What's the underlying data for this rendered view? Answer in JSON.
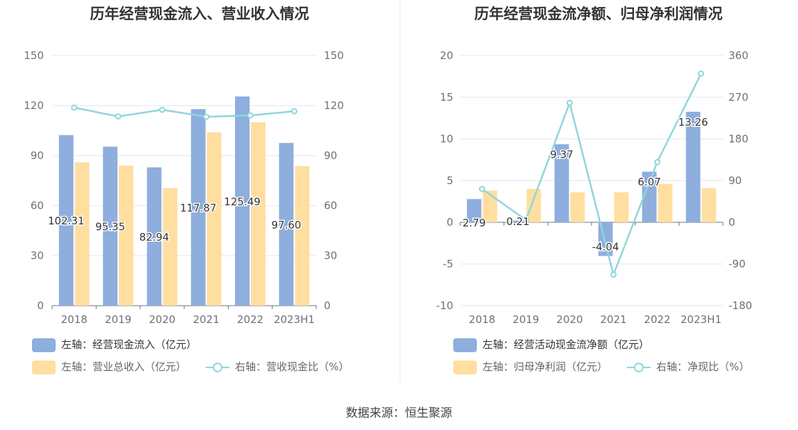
{
  "source": "数据来源：恒生聚源",
  "chart_data": [
    {
      "type": "bar",
      "title": "历年经营现金流入、营业收入情况",
      "categories": [
        "2018",
        "2019",
        "2020",
        "2021",
        "2022",
        "2023H1"
      ],
      "left_axis": {
        "ticks": [
          "0",
          "30",
          "60",
          "90",
          "120",
          "150"
        ],
        "ylim": [
          0,
          150
        ]
      },
      "right_axis": {
        "ticks": [
          "0",
          "30",
          "60",
          "90",
          "120",
          "150"
        ],
        "ylim": [
          0,
          150
        ]
      },
      "series": [
        {
          "name": "左轴：经营现金流入（亿元）",
          "axis": "left",
          "kind": "bar",
          "color": "#8eaedd",
          "values": [
            102.31,
            95.35,
            82.94,
            117.87,
            125.49,
            97.6
          ],
          "labels": [
            "102.31",
            "95.35",
            "82.94",
            "117.87",
            "125.49",
            "97.60"
          ]
        },
        {
          "name": "左轴：营业总收入（亿元）",
          "axis": "left",
          "kind": "bar",
          "color": "#ffdea0",
          "values": [
            86.0,
            84.0,
            70.5,
            104.0,
            110.0,
            83.7
          ]
        },
        {
          "name": "右轴：营收现金比（%）",
          "axis": "right",
          "kind": "line",
          "color": "#8ed6da",
          "values": [
            118.8,
            113.5,
            117.5,
            113.3,
            114.1,
            116.6
          ]
        }
      ],
      "legend_position": "bottom-left"
    },
    {
      "type": "bar",
      "title": "历年经营现金流净额、归母净利润情况",
      "categories": [
        "2018",
        "2019",
        "2020",
        "2021",
        "2022",
        "2023H1"
      ],
      "left_axis": {
        "ticks": [
          "-10",
          "-5",
          "0",
          "5",
          "10",
          "15",
          "20"
        ],
        "ylim": [
          -10,
          20
        ]
      },
      "right_axis": {
        "ticks": [
          "-180",
          "-90",
          "0",
          "90",
          "180",
          "270",
          "360"
        ],
        "ylim": [
          -180,
          360
        ]
      },
      "series": [
        {
          "name": "左轴：经营活动现金流净额（亿元）",
          "axis": "left",
          "kind": "bar",
          "color": "#8eaedd",
          "values": [
            2.79,
            0.21,
            9.37,
            -4.04,
            6.07,
            13.26
          ],
          "labels": [
            "2.79",
            "0.21",
            "9.37",
            "-4.04",
            "6.07",
            "13.26"
          ]
        },
        {
          "name": "左轴：归母净利润（亿元）",
          "axis": "left",
          "kind": "bar",
          "color": "#ffdea0",
          "values": [
            3.8,
            4.0,
            3.6,
            3.6,
            4.6,
            4.1
          ]
        },
        {
          "name": "右轴：净现比（%）",
          "axis": "right",
          "kind": "line",
          "color": "#8ed6da",
          "values": [
            72,
            5,
            258,
            -113,
            130,
            321
          ]
        }
      ],
      "legend_position": "bottom-left"
    }
  ]
}
